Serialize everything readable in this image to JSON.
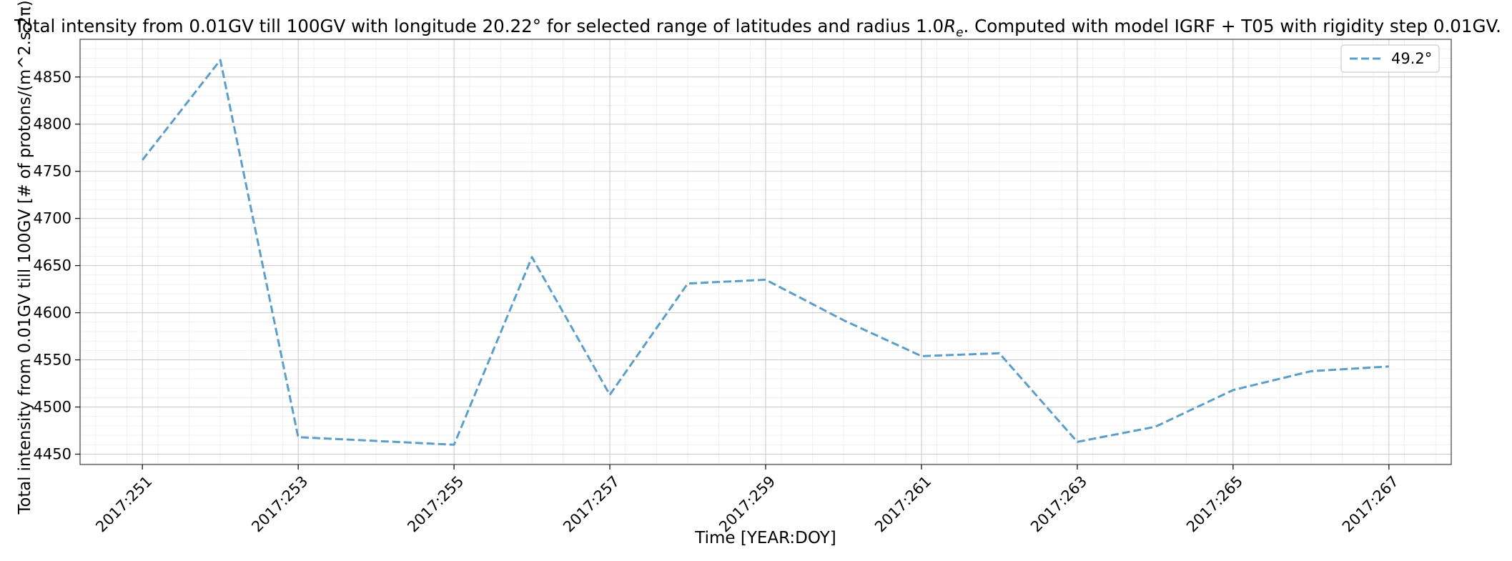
{
  "chart_data": {
    "type": "line",
    "title": {
      "prefix": "Total intensity from 0.01GV till 100GV with longitude 20.22° for selected range of latitudes and radius 1.0",
      "symbol": "R",
      "subscript": "e",
      "suffix": ". Computed with model IGRF + T05 with rigidity step 0.01GV."
    },
    "xlabel": "Time [YEAR:DOY]",
    "ylabel": "Total intensity from 0.01GV till 100GV [# of protons/(m^2.s.2π)]",
    "x_range": [
      250.2,
      267.8
    ],
    "ylim": [
      4439,
      4890
    ],
    "x_ticks": [
      {
        "x": 251,
        "label": "2017:251"
      },
      {
        "x": 253,
        "label": "2017:253"
      },
      {
        "x": 255,
        "label": "2017:255"
      },
      {
        "x": 257,
        "label": "2017:257"
      },
      {
        "x": 259,
        "label": "2017:259"
      },
      {
        "x": 261,
        "label": "2017:261"
      },
      {
        "x": 263,
        "label": "2017:263"
      },
      {
        "x": 265,
        "label": "2017:265"
      },
      {
        "x": 267,
        "label": "2017:267"
      }
    ],
    "y_ticks": [
      {
        "y": 4450,
        "label": "4450"
      },
      {
        "y": 4500,
        "label": "4500"
      },
      {
        "y": 4550,
        "label": "4550"
      },
      {
        "y": 4600,
        "label": "4600"
      },
      {
        "y": 4650,
        "label": "4650"
      },
      {
        "y": 4700,
        "label": "4700"
      },
      {
        "y": 4750,
        "label": "4750"
      },
      {
        "y": 4800,
        "label": "4800"
      },
      {
        "y": 4850,
        "label": "4850"
      }
    ],
    "grid": true,
    "minor_grid": true,
    "legend_position": "top-right",
    "series": [
      {
        "name": "49.2°",
        "color": "#5a9ec9",
        "line_style": "dashed",
        "points": [
          {
            "x": 251,
            "y": 4762
          },
          {
            "x": 252,
            "y": 4868
          },
          {
            "x": 253,
            "y": 4468
          },
          {
            "x": 254,
            "y": 4464
          },
          {
            "x": 255,
            "y": 4460
          },
          {
            "x": 256,
            "y": 4659
          },
          {
            "x": 257,
            "y": 4513
          },
          {
            "x": 258,
            "y": 4631
          },
          {
            "x": 259,
            "y": 4635
          },
          {
            "x": 260,
            "y": 4592
          },
          {
            "x": 261,
            "y": 4554
          },
          {
            "x": 262,
            "y": 4557
          },
          {
            "x": 263,
            "y": 4463
          },
          {
            "x": 264,
            "y": 4479
          },
          {
            "x": 265,
            "y": 4518
          },
          {
            "x": 266,
            "y": 4538
          },
          {
            "x": 267,
            "y": 4543
          }
        ]
      }
    ]
  }
}
